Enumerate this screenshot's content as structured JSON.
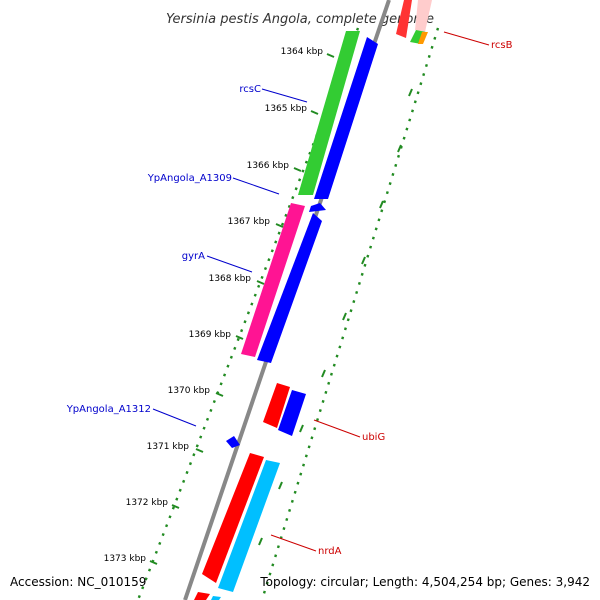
{
  "title": "Yersinia pestis Angola, complete genome",
  "footer": {
    "accession": "Accession: NC_010159",
    "topology": "Topology: circular; Length: 4,504,254 bp; Genes: 3,942"
  },
  "ruler_ticks": [
    "1364 kbp",
    "1365 kbp",
    "1366 kbp",
    "1367 kbp",
    "1368 kbp",
    "1369 kbp",
    "1370 kbp",
    "1371 kbp",
    "1372 kbp",
    "1373 kbp"
  ],
  "gene_labels": [
    {
      "text": "rcsC",
      "color": "#0000cc"
    },
    {
      "text": "YpAngola_A1309",
      "color": "#0000cc"
    },
    {
      "text": "gyrA",
      "color": "#0000cc"
    },
    {
      "text": "YpAngola_A1312",
      "color": "#0000cc"
    },
    {
      "text": "rcsB",
      "color": "#cc0000"
    },
    {
      "text": "ubiG",
      "color": "#cc0000"
    },
    {
      "text": "nrdA",
      "color": "#cc0000"
    }
  ],
  "colors": {
    "backbone": "#888888",
    "forward_gene": "#0000ff",
    "reverse_gene": "#ff0000",
    "rcsC_feature": "#33cc33",
    "gyrA_feature": "#ff1493",
    "nrdA_feature": "#00bfff",
    "rcsB_feature": "#ff9900",
    "ruler": "#228b22"
  }
}
